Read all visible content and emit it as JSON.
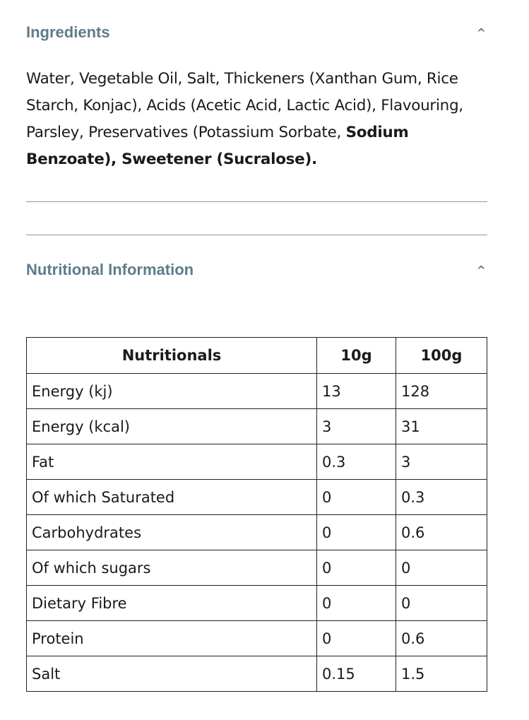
{
  "ingredients": {
    "title": "Ingredients",
    "text_regular": "Water, Vegetable Oil, Salt, Thickeners (Xanthan Gum, Rice Starch, Konjac), Acids (Acetic Acid, Lactic Acid), Flavouring, Parsley, Preservatives (Potassium Sorbate, ",
    "text_bold": "Sodium Benzoate), Sweetener (Sucralose).",
    "icon": "chevron-up-icon"
  },
  "nutrition": {
    "title": "Nutritional Information",
    "icon": "chevron-up-icon",
    "headers": [
      "Nutritionals",
      "10g",
      "100g"
    ],
    "rows": [
      [
        "Energy (kj)",
        "13",
        "128"
      ],
      [
        "Energy (kcal)",
        "3",
        "31"
      ],
      [
        "Fat",
        "0.3",
        "3"
      ],
      [
        "Of which Saturated",
        "0",
        "0.3"
      ],
      [
        "Carbohydrates",
        "0",
        "0.6"
      ],
      [
        "Of which sugars",
        "0",
        "0"
      ],
      [
        "Dietary Fibre",
        "0",
        "0"
      ],
      [
        "Protein",
        "0",
        "0.6"
      ],
      [
        "Salt",
        "0.15",
        "1.5"
      ]
    ]
  }
}
